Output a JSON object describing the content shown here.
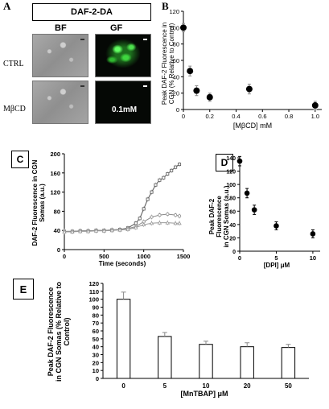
{
  "panelA": {
    "letter": "A",
    "title": "DAF-2-DA",
    "col_bf": "BF",
    "col_gf": "GF",
    "row_ctrl": "CTRL",
    "row_mbcd": "MβCD",
    "overlay": "0.1mM"
  },
  "panelB": {
    "letter": "B",
    "ylabel_line1": "Peak DAF-2 Fluorescence in",
    "ylabel_line2": "CGN (% Relative to Control)",
    "xlabel": "[MβCD] mM"
  },
  "panelC": {
    "letter": "C",
    "ylabel_line1": "DAF-2 Fluorescence in CGN",
    "ylabel_line2": "Somas (a.u.)",
    "xlabel": "Time (seconds)"
  },
  "panelD": {
    "letter": "D",
    "ylabel_line1": "Peak DAF-2",
    "ylabel_line2": "Fluorescence",
    "ylabel_line3": "in CGN Somas (a.u.)",
    "xlabel": "[DPI] μM"
  },
  "panelE": {
    "letter": "E",
    "ylabel_line1": "Peak DAF-2 Fluorescence",
    "ylabel_line2": "in CGN Somas (% Relative to",
    "ylabel_line3": "Control)",
    "xlabel": "[MnTBAP] μM"
  },
  "chart_data": [
    {
      "id": "B",
      "type": "scatter",
      "x": [
        0,
        0.05,
        0.1,
        0.2,
        0.5,
        1.0
      ],
      "y": [
        100,
        47,
        23,
        15,
        25,
        5
      ],
      "error": [
        5,
        6,
        6,
        5,
        6,
        5
      ],
      "xlim": [
        0,
        1.05
      ],
      "ylim": [
        0,
        120
      ],
      "xticks": [
        0,
        0.2,
        0.4,
        0.6,
        0.8,
        1.0
      ],
      "xtick_labels": [
        "0",
        "0.2",
        "0.4",
        "0.6",
        "0.8",
        "1.0"
      ],
      "yticks": [
        0,
        20,
        40,
        60,
        80,
        100,
        120
      ],
      "xlabel": "[MβCD] mM",
      "ylabel": "Peak DAF-2 Fluorescence in CGN (% Relative to Control)"
    },
    {
      "id": "C",
      "type": "line",
      "xlim": [
        0,
        1500
      ],
      "ylim": [
        0,
        200
      ],
      "xticks": [
        0,
        500,
        1000,
        1500
      ],
      "yticks": [
        0,
        40,
        80,
        120,
        160,
        200
      ],
      "xlabel": "Time (seconds)",
      "ylabel": "DAF-2 Fluorescence in CGN Somas (a.u.)",
      "series": [
        {
          "marker": "square",
          "x": [
            0,
            100,
            200,
            300,
            400,
            500,
            600,
            700,
            800,
            900,
            950,
            1000,
            1050,
            1100,
            1150,
            1200,
            1250,
            1300,
            1350,
            1400,
            1450
          ],
          "y": [
            38,
            38,
            39,
            39,
            40,
            40,
            41,
            42,
            45,
            55,
            65,
            85,
            105,
            120,
            135,
            145,
            150,
            158,
            165,
            172,
            178
          ]
        },
        {
          "marker": "circle",
          "x": [
            0,
            100,
            200,
            300,
            400,
            500,
            600,
            700,
            800,
            900,
            1000,
            1100,
            1200,
            1300,
            1400,
            1450
          ],
          "y": [
            38,
            38,
            39,
            39,
            40,
            40,
            41,
            42,
            44,
            48,
            58,
            68,
            72,
            74,
            72,
            70
          ]
        },
        {
          "marker": "triangle",
          "x": [
            0,
            100,
            200,
            300,
            400,
            500,
            600,
            700,
            800,
            900,
            1000,
            1100,
            1200,
            1300,
            1400,
            1450
          ],
          "y": [
            37,
            37,
            38,
            38,
            39,
            39,
            40,
            41,
            42,
            46,
            52,
            55,
            56,
            56,
            55,
            55
          ]
        }
      ]
    },
    {
      "id": "D",
      "type": "scatter",
      "x": [
        0,
        1,
        2,
        5,
        10
      ],
      "y": [
        135,
        87,
        62,
        38,
        26
      ],
      "error": [
        7,
        7,
        7,
        6,
        6
      ],
      "xlim": [
        0,
        11
      ],
      "ylim": [
        0,
        140
      ],
      "xticks": [
        0,
        5,
        10
      ],
      "yticks": [
        0,
        20,
        40,
        60,
        80,
        100,
        120,
        140
      ],
      "xlabel": "[DPI] μM",
      "ylabel": "Peak DAF-2 Fluorescence in CGN Somas (a.u.)"
    },
    {
      "id": "E",
      "type": "bar",
      "categories": [
        "0",
        "5",
        "10",
        "20",
        "50"
      ],
      "values": [
        100,
        53,
        43,
        40,
        39
      ],
      "error": [
        9,
        5,
        4,
        5,
        4
      ],
      "ylim": [
        0,
        120
      ],
      "yticks": [
        0,
        10,
        20,
        30,
        40,
        50,
        60,
        70,
        80,
        90,
        100,
        110,
        120
      ],
      "xlabel": "[MnTBAP] μM",
      "ylabel": "Peak DAF-2 Fluorescence in CGN Somas (% Relative to Control)"
    }
  ]
}
